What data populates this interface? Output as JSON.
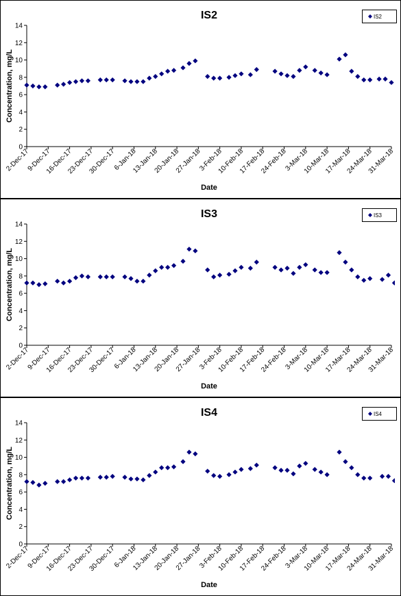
{
  "marker_color": "#00007f",
  "chart_data": [
    {
      "type": "scatter",
      "title": "IS2",
      "xlabel": "Date",
      "ylabel": "Concentration, mg/L",
      "ylim": [
        0,
        14
      ],
      "yticks": [
        0,
        2,
        4,
        6,
        8,
        10,
        12,
        14
      ],
      "xlim": [
        "2017-12-02",
        "2018-03-31"
      ],
      "xtick_labels": [
        "2-Dec-17",
        "9-Dec-17",
        "16-Dec-17",
        "23-Dec-17",
        "30-Dec-17",
        "6-Jan-18",
        "13-Jan-18",
        "20-Jan-18",
        "27-Jan-18",
        "3-Feb-18",
        "10-Feb-18",
        "17-Feb-18",
        "24-Feb-18",
        "3-Mar-18",
        "10-Mar-18",
        "17-Mar-18",
        "24-Mar-18",
        "31-Mar-18"
      ],
      "xtick_dates": [
        "2017-12-02",
        "2017-12-09",
        "2017-12-16",
        "2017-12-23",
        "2017-12-30",
        "2018-01-06",
        "2018-01-13",
        "2018-01-20",
        "2018-01-27",
        "2018-02-03",
        "2018-02-10",
        "2018-02-17",
        "2018-02-24",
        "2018-03-03",
        "2018-03-10",
        "2018-03-17",
        "2018-03-24",
        "2018-03-31"
      ],
      "grid": false,
      "legend": "top-right",
      "series": [
        {
          "name": "IS2",
          "x": [
            "2017-12-02",
            "2017-12-04",
            "2017-12-06",
            "2017-12-08",
            "2017-12-12",
            "2017-12-14",
            "2017-12-16",
            "2017-12-18",
            "2017-12-20",
            "2017-12-22",
            "2017-12-26",
            "2017-12-28",
            "2017-12-30",
            "2018-01-03",
            "2018-01-05",
            "2018-01-07",
            "2018-01-09",
            "2018-01-11",
            "2018-01-13",
            "2018-01-15",
            "2018-01-17",
            "2018-01-19",
            "2018-01-22",
            "2018-01-24",
            "2018-01-26",
            "2018-01-30",
            "2018-02-01",
            "2018-02-03",
            "2018-02-06",
            "2018-02-08",
            "2018-02-10",
            "2018-02-13",
            "2018-02-15",
            "2018-02-21",
            "2018-02-23",
            "2018-02-25",
            "2018-02-27",
            "2018-03-01",
            "2018-03-03",
            "2018-03-06",
            "2018-03-08",
            "2018-03-10",
            "2018-03-14",
            "2018-03-16",
            "2018-03-18",
            "2018-03-20",
            "2018-03-22",
            "2018-03-24",
            "2018-03-27",
            "2018-03-29",
            "2018-03-31"
          ],
          "y": [
            7.1,
            7.0,
            6.9,
            6.9,
            7.1,
            7.2,
            7.4,
            7.5,
            7.6,
            7.6,
            7.7,
            7.7,
            7.7,
            7.6,
            7.5,
            7.5,
            7.5,
            7.9,
            8.1,
            8.4,
            8.7,
            8.8,
            9.1,
            9.6,
            9.9,
            8.1,
            7.9,
            7.9,
            8.0,
            8.2,
            8.4,
            8.3,
            8.9,
            8.7,
            8.4,
            8.2,
            8.1,
            8.8,
            9.2,
            8.8,
            8.5,
            8.3,
            10.1,
            10.6,
            8.7,
            8.1,
            7.7,
            7.7,
            7.8,
            7.8,
            7.4
          ]
        }
      ]
    },
    {
      "type": "scatter",
      "title": "IS3",
      "xlabel": "Date",
      "ylabel": "Concentration, mg/L",
      "ylim": [
        0,
        14
      ],
      "yticks": [
        0,
        2,
        4,
        6,
        8,
        10,
        12,
        14
      ],
      "xlim": [
        "2017-12-02",
        "2018-03-31"
      ],
      "xtick_labels": [
        "2-Dec-17",
        "9-Dec-17",
        "16-Dec-17",
        "23-Dec-17",
        "30-Dec-17",
        "6-Jan-18",
        "13-Jan-18",
        "20-Jan-18",
        "27-Jan-18",
        "3-Feb-18",
        "10-Feb-18",
        "17-Feb-18",
        "24-Feb-18",
        "3-Mar-18",
        "10-Mar-18",
        "17-Mar-18",
        "24-Mar-18",
        "31-Mar-18"
      ],
      "xtick_dates": [
        "2017-12-02",
        "2017-12-09",
        "2017-12-16",
        "2017-12-23",
        "2017-12-30",
        "2018-01-06",
        "2018-01-13",
        "2018-01-20",
        "2018-01-27",
        "2018-02-03",
        "2018-02-10",
        "2018-02-17",
        "2018-02-24",
        "2018-03-03",
        "2018-03-10",
        "2018-03-17",
        "2018-03-24",
        "2018-03-31"
      ],
      "grid": false,
      "legend": "top-right",
      "series": [
        {
          "name": "IS3",
          "x": [
            "2017-12-02",
            "2017-12-04",
            "2017-12-06",
            "2017-12-08",
            "2017-12-12",
            "2017-12-14",
            "2017-12-16",
            "2017-12-18",
            "2017-12-20",
            "2017-12-22",
            "2017-12-26",
            "2017-12-28",
            "2017-12-30",
            "2018-01-03",
            "2018-01-05",
            "2018-01-07",
            "2018-01-09",
            "2018-01-11",
            "2018-01-13",
            "2018-01-15",
            "2018-01-17",
            "2018-01-19",
            "2018-01-22",
            "2018-01-24",
            "2018-01-26",
            "2018-01-30",
            "2018-02-01",
            "2018-02-03",
            "2018-02-06",
            "2018-02-08",
            "2018-02-10",
            "2018-02-13",
            "2018-02-15",
            "2018-02-21",
            "2018-02-23",
            "2018-02-25",
            "2018-02-27",
            "2018-03-01",
            "2018-03-03",
            "2018-03-06",
            "2018-03-08",
            "2018-03-10",
            "2018-03-14",
            "2018-03-16",
            "2018-03-18",
            "2018-03-20",
            "2018-03-22",
            "2018-03-24",
            "2018-03-28",
            "2018-03-30",
            "2018-04-01"
          ],
          "y": [
            7.2,
            7.2,
            7.0,
            7.1,
            7.4,
            7.2,
            7.4,
            7.8,
            8.0,
            7.9,
            7.9,
            7.9,
            7.9,
            7.9,
            7.7,
            7.4,
            7.4,
            8.1,
            8.6,
            9.0,
            9.0,
            9.2,
            9.7,
            11.1,
            10.9,
            8.7,
            7.9,
            8.1,
            8.2,
            8.6,
            9.0,
            8.9,
            9.6,
            9.0,
            8.7,
            8.9,
            8.3,
            9.0,
            9.3,
            8.7,
            8.4,
            8.4,
            10.7,
            9.6,
            8.7,
            7.9,
            7.5,
            7.7,
            7.6,
            8.1,
            7.2
          ]
        }
      ]
    },
    {
      "type": "scatter",
      "title": "IS4",
      "xlabel": "Date",
      "ylabel": "Concentration, mg/L",
      "ylim": [
        0,
        14
      ],
      "yticks": [
        0,
        2,
        4,
        6,
        8,
        10,
        12,
        14
      ],
      "xlim": [
        "2017-12-02",
        "2018-03-31"
      ],
      "xtick_labels": [
        "2-Dec-17",
        "9-Dec-17",
        "16-Dec-17",
        "23-Dec-17",
        "30-Dec-17",
        "6-Jan-18",
        "13-Jan-18",
        "20-Jan-18",
        "27-Jan-18",
        "3-Feb-18",
        "10-Feb-18",
        "17-Feb-18",
        "24-Feb-18",
        "3-Mar-18",
        "10-Mar-18",
        "17-Mar-18",
        "24-Mar-18",
        "31-Mar-18"
      ],
      "xtick_dates": [
        "2017-12-02",
        "2017-12-09",
        "2017-12-16",
        "2017-12-23",
        "2017-12-30",
        "2018-01-06",
        "2018-01-13",
        "2018-01-20",
        "2018-01-27",
        "2018-02-03",
        "2018-02-10",
        "2018-02-17",
        "2018-02-24",
        "2018-03-03",
        "2018-03-10",
        "2018-03-17",
        "2018-03-24",
        "2018-03-31"
      ],
      "grid": false,
      "legend": "top-right",
      "series": [
        {
          "name": "IS4",
          "x": [
            "2017-12-02",
            "2017-12-04",
            "2017-12-06",
            "2017-12-08",
            "2017-12-12",
            "2017-12-14",
            "2017-12-16",
            "2017-12-18",
            "2017-12-20",
            "2017-12-22",
            "2017-12-26",
            "2017-12-28",
            "2017-12-30",
            "2018-01-03",
            "2018-01-05",
            "2018-01-07",
            "2018-01-09",
            "2018-01-11",
            "2018-01-13",
            "2018-01-15",
            "2018-01-17",
            "2018-01-19",
            "2018-01-22",
            "2018-01-24",
            "2018-01-26",
            "2018-01-30",
            "2018-02-01",
            "2018-02-03",
            "2018-02-06",
            "2018-02-08",
            "2018-02-10",
            "2018-02-13",
            "2018-02-15",
            "2018-02-21",
            "2018-02-23",
            "2018-02-25",
            "2018-02-27",
            "2018-03-01",
            "2018-03-03",
            "2018-03-06",
            "2018-03-08",
            "2018-03-10",
            "2018-03-14",
            "2018-03-16",
            "2018-03-18",
            "2018-03-20",
            "2018-03-22",
            "2018-03-24",
            "2018-03-28",
            "2018-03-30",
            "2018-04-01"
          ],
          "y": [
            7.2,
            7.1,
            6.8,
            7.0,
            7.2,
            7.2,
            7.4,
            7.6,
            7.6,
            7.6,
            7.7,
            7.7,
            7.8,
            7.7,
            7.5,
            7.5,
            7.4,
            7.9,
            8.3,
            8.8,
            8.8,
            8.9,
            9.5,
            10.6,
            10.4,
            8.4,
            7.9,
            7.8,
            8.0,
            8.3,
            8.6,
            8.7,
            9.1,
            8.8,
            8.5,
            8.5,
            8.1,
            9.0,
            9.3,
            8.6,
            8.3,
            8.0,
            10.6,
            9.5,
            8.8,
            8.0,
            7.6,
            7.6,
            7.8,
            7.8,
            7.3
          ]
        }
      ]
    }
  ]
}
